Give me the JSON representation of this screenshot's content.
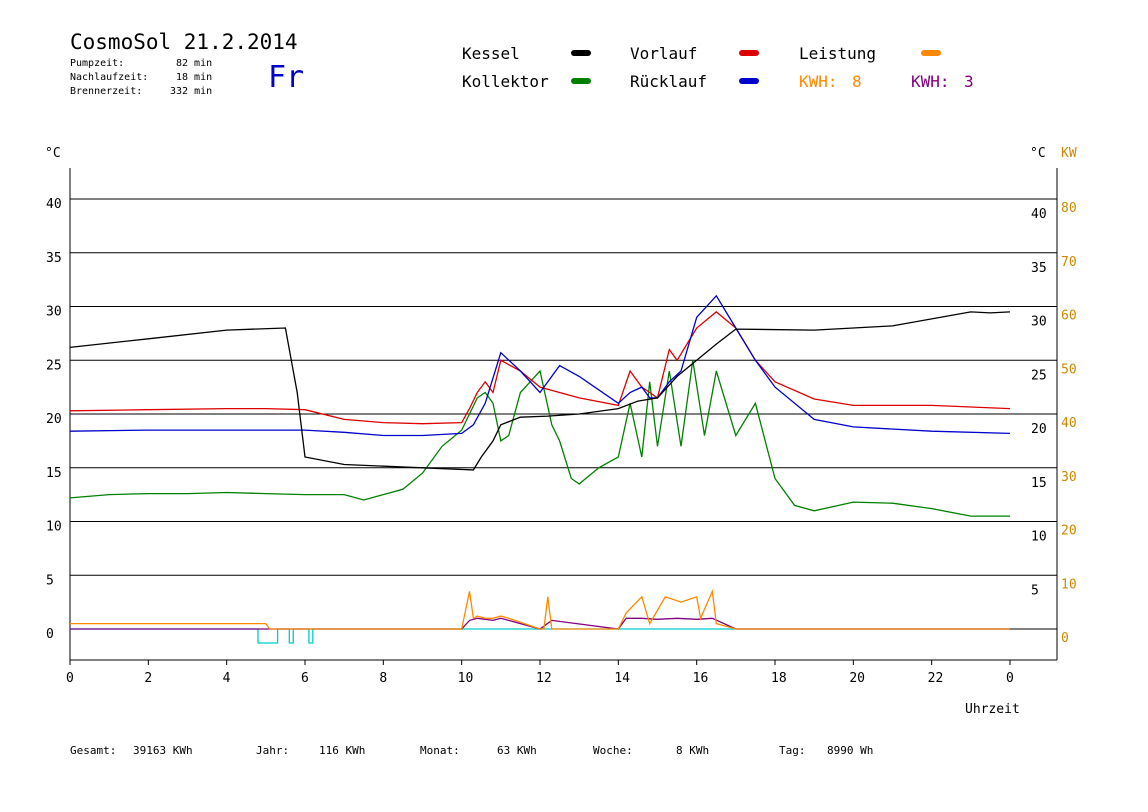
{
  "header": {
    "title": "CosmoSol 21.2.2014",
    "pump_label": "Pumpzeit:",
    "pump_value": "82 min",
    "nachlauf_label": "Nachlaufzeit:",
    "nachlauf_value": "18 min",
    "brenner_label": "Brennerzeit:",
    "brenner_value": "332 min",
    "weekday": "Fr"
  },
  "legend": {
    "kessel": "Kessel",
    "kollektor": "Kollektor",
    "vorlauf": "Vorlauf",
    "ruecklauf": "Rücklauf",
    "leistung": "Leistung",
    "kwh_orange_label": "KWH:",
    "kwh_orange_value": "8",
    "kwh_purple_label": "KWH:",
    "kwh_purple_value": "3"
  },
  "colors": {
    "kessel": "#000000",
    "kollektor": "#008000",
    "vorlauf": "#dd0000",
    "ruecklauf": "#0000cc",
    "leistung": "#ff8800",
    "kwh_purple": "#800080",
    "pump": "#00cccc",
    "axis_right": "#cc8800"
  },
  "footer": {
    "gesamt_label": "Gesamt:",
    "gesamt_value": "39163 KWh",
    "jahr_label": "Jahr:",
    "jahr_value": "116 KWh",
    "monat_label": "Monat:",
    "monat_value": "63 KWh",
    "woche_label": "Woche:",
    "woche_value": "8 KWh",
    "tag_label": "Tag:",
    "tag_value": "8990 Wh"
  },
  "chart_data": {
    "type": "line",
    "xlabel": "Uhrzeit",
    "ylabel_left": "°C",
    "ylabel_right_temp": "°C",
    "ylabel_right_power": "KW",
    "xlim": [
      0,
      24
    ],
    "ylim": [
      -3,
      43
    ],
    "x_ticks": [
      "0",
      "2",
      "4",
      "6",
      "8",
      "10",
      "12",
      "14",
      "16",
      "18",
      "20",
      "22",
      "0"
    ],
    "y_ticks_left": [
      "0",
      "5",
      "10",
      "15",
      "20",
      "25",
      "30",
      "35",
      "40"
    ],
    "y_ticks_right_temp": [
      "5",
      "10",
      "15",
      "20",
      "25",
      "30",
      "35",
      "40"
    ],
    "y_ticks_right_kw": [
      "0",
      "10",
      "20",
      "30",
      "40",
      "50",
      "60",
      "70",
      "80"
    ],
    "series": [
      {
        "name": "Kessel",
        "x": [
          0,
          2,
          4,
          5.5,
          5.8,
          6,
          7,
          9,
          10.3,
          10.5,
          10.8,
          11,
          11.5,
          12.2,
          13,
          14,
          14.5,
          15,
          15.5,
          16,
          16.5,
          17,
          19,
          21,
          23,
          23.5,
          24
        ],
        "y": [
          26.2,
          27,
          27.8,
          28,
          22,
          16,
          15.3,
          15,
          14.8,
          16,
          17.5,
          19,
          19.7,
          19.8,
          20,
          20.5,
          21.2,
          21.5,
          23.5,
          25,
          26.5,
          27.9,
          27.8,
          28.2,
          29.5,
          29.4,
          29.5
        ]
      },
      {
        "name": "Kollektor",
        "x": [
          0,
          1,
          2,
          3,
          4,
          5,
          6,
          7,
          7.5,
          8,
          8.5,
          9,
          9.5,
          10,
          10.2,
          10.4,
          10.6,
          10.8,
          11,
          11.2,
          11.5,
          12,
          12.3,
          12.5,
          12.8,
          13,
          13.5,
          14,
          14.3,
          14.6,
          14.8,
          15,
          15.3,
          15.6,
          15.9,
          16.2,
          16.5,
          17,
          17.5,
          18,
          18.5,
          19,
          20,
          21,
          22,
          23,
          24
        ],
        "y": [
          12.2,
          12.5,
          12.6,
          12.6,
          12.7,
          12.6,
          12.5,
          12.5,
          12,
          12.5,
          13,
          14.5,
          17,
          18.5,
          20,
          21.5,
          22,
          21,
          17.5,
          18,
          22,
          24,
          19,
          17.5,
          14,
          13.5,
          15,
          16,
          21,
          16,
          23,
          17,
          24,
          17,
          25,
          18,
          24,
          18,
          21,
          14,
          11.5,
          11,
          11.8,
          11.7,
          11.2,
          10.5,
          10.5
        ]
      },
      {
        "name": "Vorlauf",
        "x": [
          0,
          2,
          4,
          5,
          6,
          7,
          8,
          9,
          10,
          10.2,
          10.4,
          10.6,
          10.8,
          11,
          11.5,
          12,
          13,
          14,
          14.3,
          14.6,
          14.8,
          15,
          15.3,
          15.5,
          16,
          16.5,
          17,
          17.5,
          18,
          19,
          20,
          22,
          24
        ],
        "y": [
          20.3,
          20.4,
          20.5,
          20.5,
          20.4,
          19.5,
          19.2,
          19.1,
          19.2,
          20.5,
          22,
          23,
          22,
          25,
          24,
          22.5,
          21.5,
          20.8,
          24,
          22.5,
          22,
          21.5,
          26,
          25,
          28,
          29.5,
          28,
          25,
          23,
          21.4,
          20.8,
          20.8,
          20.5
        ]
      },
      {
        "name": "Rücklauf",
        "x": [
          0,
          2,
          4,
          6,
          7,
          8,
          9,
          10,
          10.3,
          10.6,
          11,
          11.5,
          12,
          12.5,
          13,
          14,
          14.3,
          14.6,
          14.8,
          15,
          15.3,
          15.6,
          16,
          16.5,
          17,
          17.5,
          18,
          19,
          20,
          22,
          24
        ],
        "y": [
          18.4,
          18.5,
          18.5,
          18.5,
          18.3,
          18,
          18,
          18.2,
          19,
          21,
          25.7,
          24,
          22,
          24.5,
          23.5,
          21,
          22,
          22.5,
          21.5,
          21.5,
          23,
          24,
          29,
          31,
          28,
          25,
          22.5,
          19.5,
          18.8,
          18.4,
          18.2
        ]
      },
      {
        "name": "Leistung",
        "x": [
          0,
          1,
          2,
          3,
          4,
          5,
          5.1,
          10,
          10.2,
          10.3,
          10.4,
          10.6,
          10.8,
          11,
          11.2,
          12,
          12.1,
          12.2,
          12.3,
          14,
          14.2,
          14.6,
          14.8,
          15.2,
          15.6,
          16,
          16.1,
          16.4,
          16.5,
          17,
          24
        ],
        "y": [
          0.5,
          0.5,
          0.5,
          0.5,
          0.5,
          0.5,
          0,
          0,
          3.5,
          1,
          1.2,
          1,
          1,
          1.2,
          1,
          0,
          0,
          3,
          0,
          0,
          1.5,
          3,
          0.5,
          3,
          2.5,
          3,
          1,
          3.5,
          0.5,
          0,
          0
        ]
      },
      {
        "name": "KWH",
        "x": [
          0,
          10,
          10.2,
          10.4,
          10.8,
          11,
          11.2,
          12,
          12.3,
          14,
          14.2,
          14.6,
          15,
          15.5,
          16,
          16.4,
          17,
          24
        ],
        "y": [
          0,
          0,
          0.8,
          1,
          0.8,
          1,
          0.8,
          0,
          0.8,
          0,
          1,
          1,
          0.9,
          1,
          0.9,
          1,
          0,
          0
        ]
      },
      {
        "name": "Pumpe",
        "x": [
          0,
          4.7,
          4.8,
          5.2,
          5.3,
          5.6,
          5.7,
          6.1,
          6.2,
          24
        ],
        "y": [
          0,
          0,
          -1.3,
          -1.3,
          0,
          -1.3,
          0,
          -1.3,
          0,
          0
        ]
      }
    ],
    "grid": "horizontal",
    "legend_position": "top"
  }
}
